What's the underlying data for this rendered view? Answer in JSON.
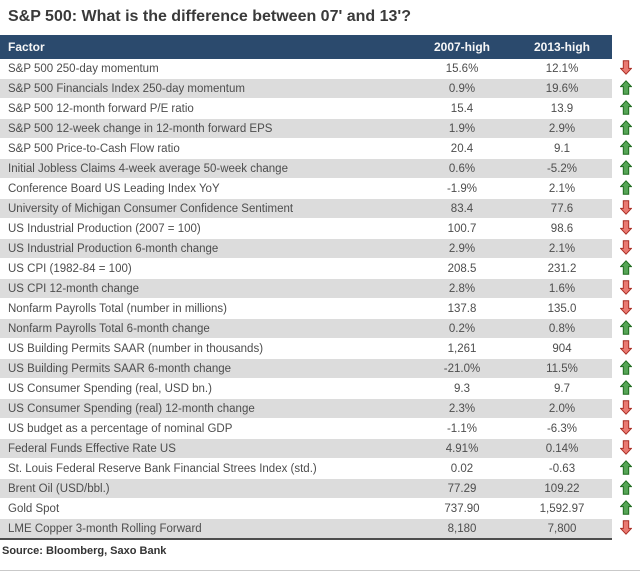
{
  "chart_data": {
    "type": "table",
    "title": "S&P 500: What is the difference between 07' and 13'?",
    "headers": {
      "factor": "Factor",
      "col2007": "2007-high",
      "col2013": "2013-high"
    },
    "columns": [
      "Factor",
      "2007-high",
      "2013-high",
      "trend"
    ],
    "rows": [
      {
        "factor": "S&P 500 250-day momentum",
        "v2007": "15.6%",
        "v2013": "12.1%",
        "trend": "down"
      },
      {
        "factor": "S&P 500 Financials Index 250-day momentum",
        "v2007": "0.9%",
        "v2013": "19.6%",
        "trend": "up"
      },
      {
        "factor": "S&P 500 12-month forward P/E ratio",
        "v2007": "15.4",
        "v2013": "13.9",
        "trend": "up"
      },
      {
        "factor": "S&P 500 12-week change in 12-month forward EPS",
        "v2007": "1.9%",
        "v2013": "2.9%",
        "trend": "up"
      },
      {
        "factor": "S&P 500 Price-to-Cash Flow ratio",
        "v2007": "20.4",
        "v2013": "9.1",
        "trend": "up"
      },
      {
        "factor": "Initial Jobless Claims 4-week average 50-week change",
        "v2007": "0.6%",
        "v2013": "-5.2%",
        "trend": "up"
      },
      {
        "factor": "Conference Board US Leading Index YoY",
        "v2007": "-1.9%",
        "v2013": "2.1%",
        "trend": "up"
      },
      {
        "factor": "University of Michigan Consumer Confidence Sentiment",
        "v2007": "83.4",
        "v2013": "77.6",
        "trend": "down"
      },
      {
        "factor": "US Industrial Production (2007 = 100)",
        "v2007": "100.7",
        "v2013": "98.6",
        "trend": "down"
      },
      {
        "factor": "US Industrial Production 6-month change",
        "v2007": "2.9%",
        "v2013": "2.1%",
        "trend": "down"
      },
      {
        "factor": "US CPI (1982-84 = 100)",
        "v2007": "208.5",
        "v2013": "231.2",
        "trend": "up"
      },
      {
        "factor": "US CPI 12-month change",
        "v2007": "2.8%",
        "v2013": "1.6%",
        "trend": "down"
      },
      {
        "factor": "Nonfarm Payrolls Total  (number in millions)",
        "v2007": "137.8",
        "v2013": "135.0",
        "trend": "down"
      },
      {
        "factor": "Nonfarm Payrolls Total 6-month change",
        "v2007": "0.2%",
        "v2013": "0.8%",
        "trend": "up"
      },
      {
        "factor": "US Building Permits SAAR (number in thousands)",
        "v2007": "1,261",
        "v2013": "904",
        "trend": "down"
      },
      {
        "factor": "US Building Permits SAAR 6-month change",
        "v2007": "-21.0%",
        "v2013": "11.5%",
        "trend": "up"
      },
      {
        "factor": "US Consumer Spending (real, USD bn.)",
        "v2007": "9.3",
        "v2013": "9.7",
        "trend": "up"
      },
      {
        "factor": "US Consumer Spending (real) 12-month change",
        "v2007": "2.3%",
        "v2013": "2.0%",
        "trend": "down"
      },
      {
        "factor": "US budget as a percentage of nominal GDP",
        "v2007": "-1.1%",
        "v2013": "-6.3%",
        "trend": "down"
      },
      {
        "factor": "Federal Funds Effective Rate US",
        "v2007": "4.91%",
        "v2013": "0.14%",
        "trend": "down"
      },
      {
        "factor": "St. Louis Federal Reserve Bank Financial Strees Index (std.)",
        "v2007": "0.02",
        "v2013": "-0.63",
        "trend": "up"
      },
      {
        "factor": "Brent Oil (USD/bbl.)",
        "v2007": "77.29",
        "v2013": "109.22",
        "trend": "up"
      },
      {
        "factor": "Gold Spot",
        "v2007": "737.90",
        "v2013": "1,592.97",
        "trend": "up"
      },
      {
        "factor": "LME Copper 3-month Rolling Forward",
        "v2007": "8,180",
        "v2013": "7,800",
        "trend": "down"
      }
    ],
    "source": "Source: Bloomberg, Saxo Bank",
    "colors": {
      "header_bg": "#2b4a6d",
      "stripe_bg": "#dcdcdc",
      "up_fill": "#55a555",
      "up_stroke": "#1f6b1f",
      "down_fill": "#ea7a72",
      "down_stroke": "#ab2f26"
    }
  }
}
